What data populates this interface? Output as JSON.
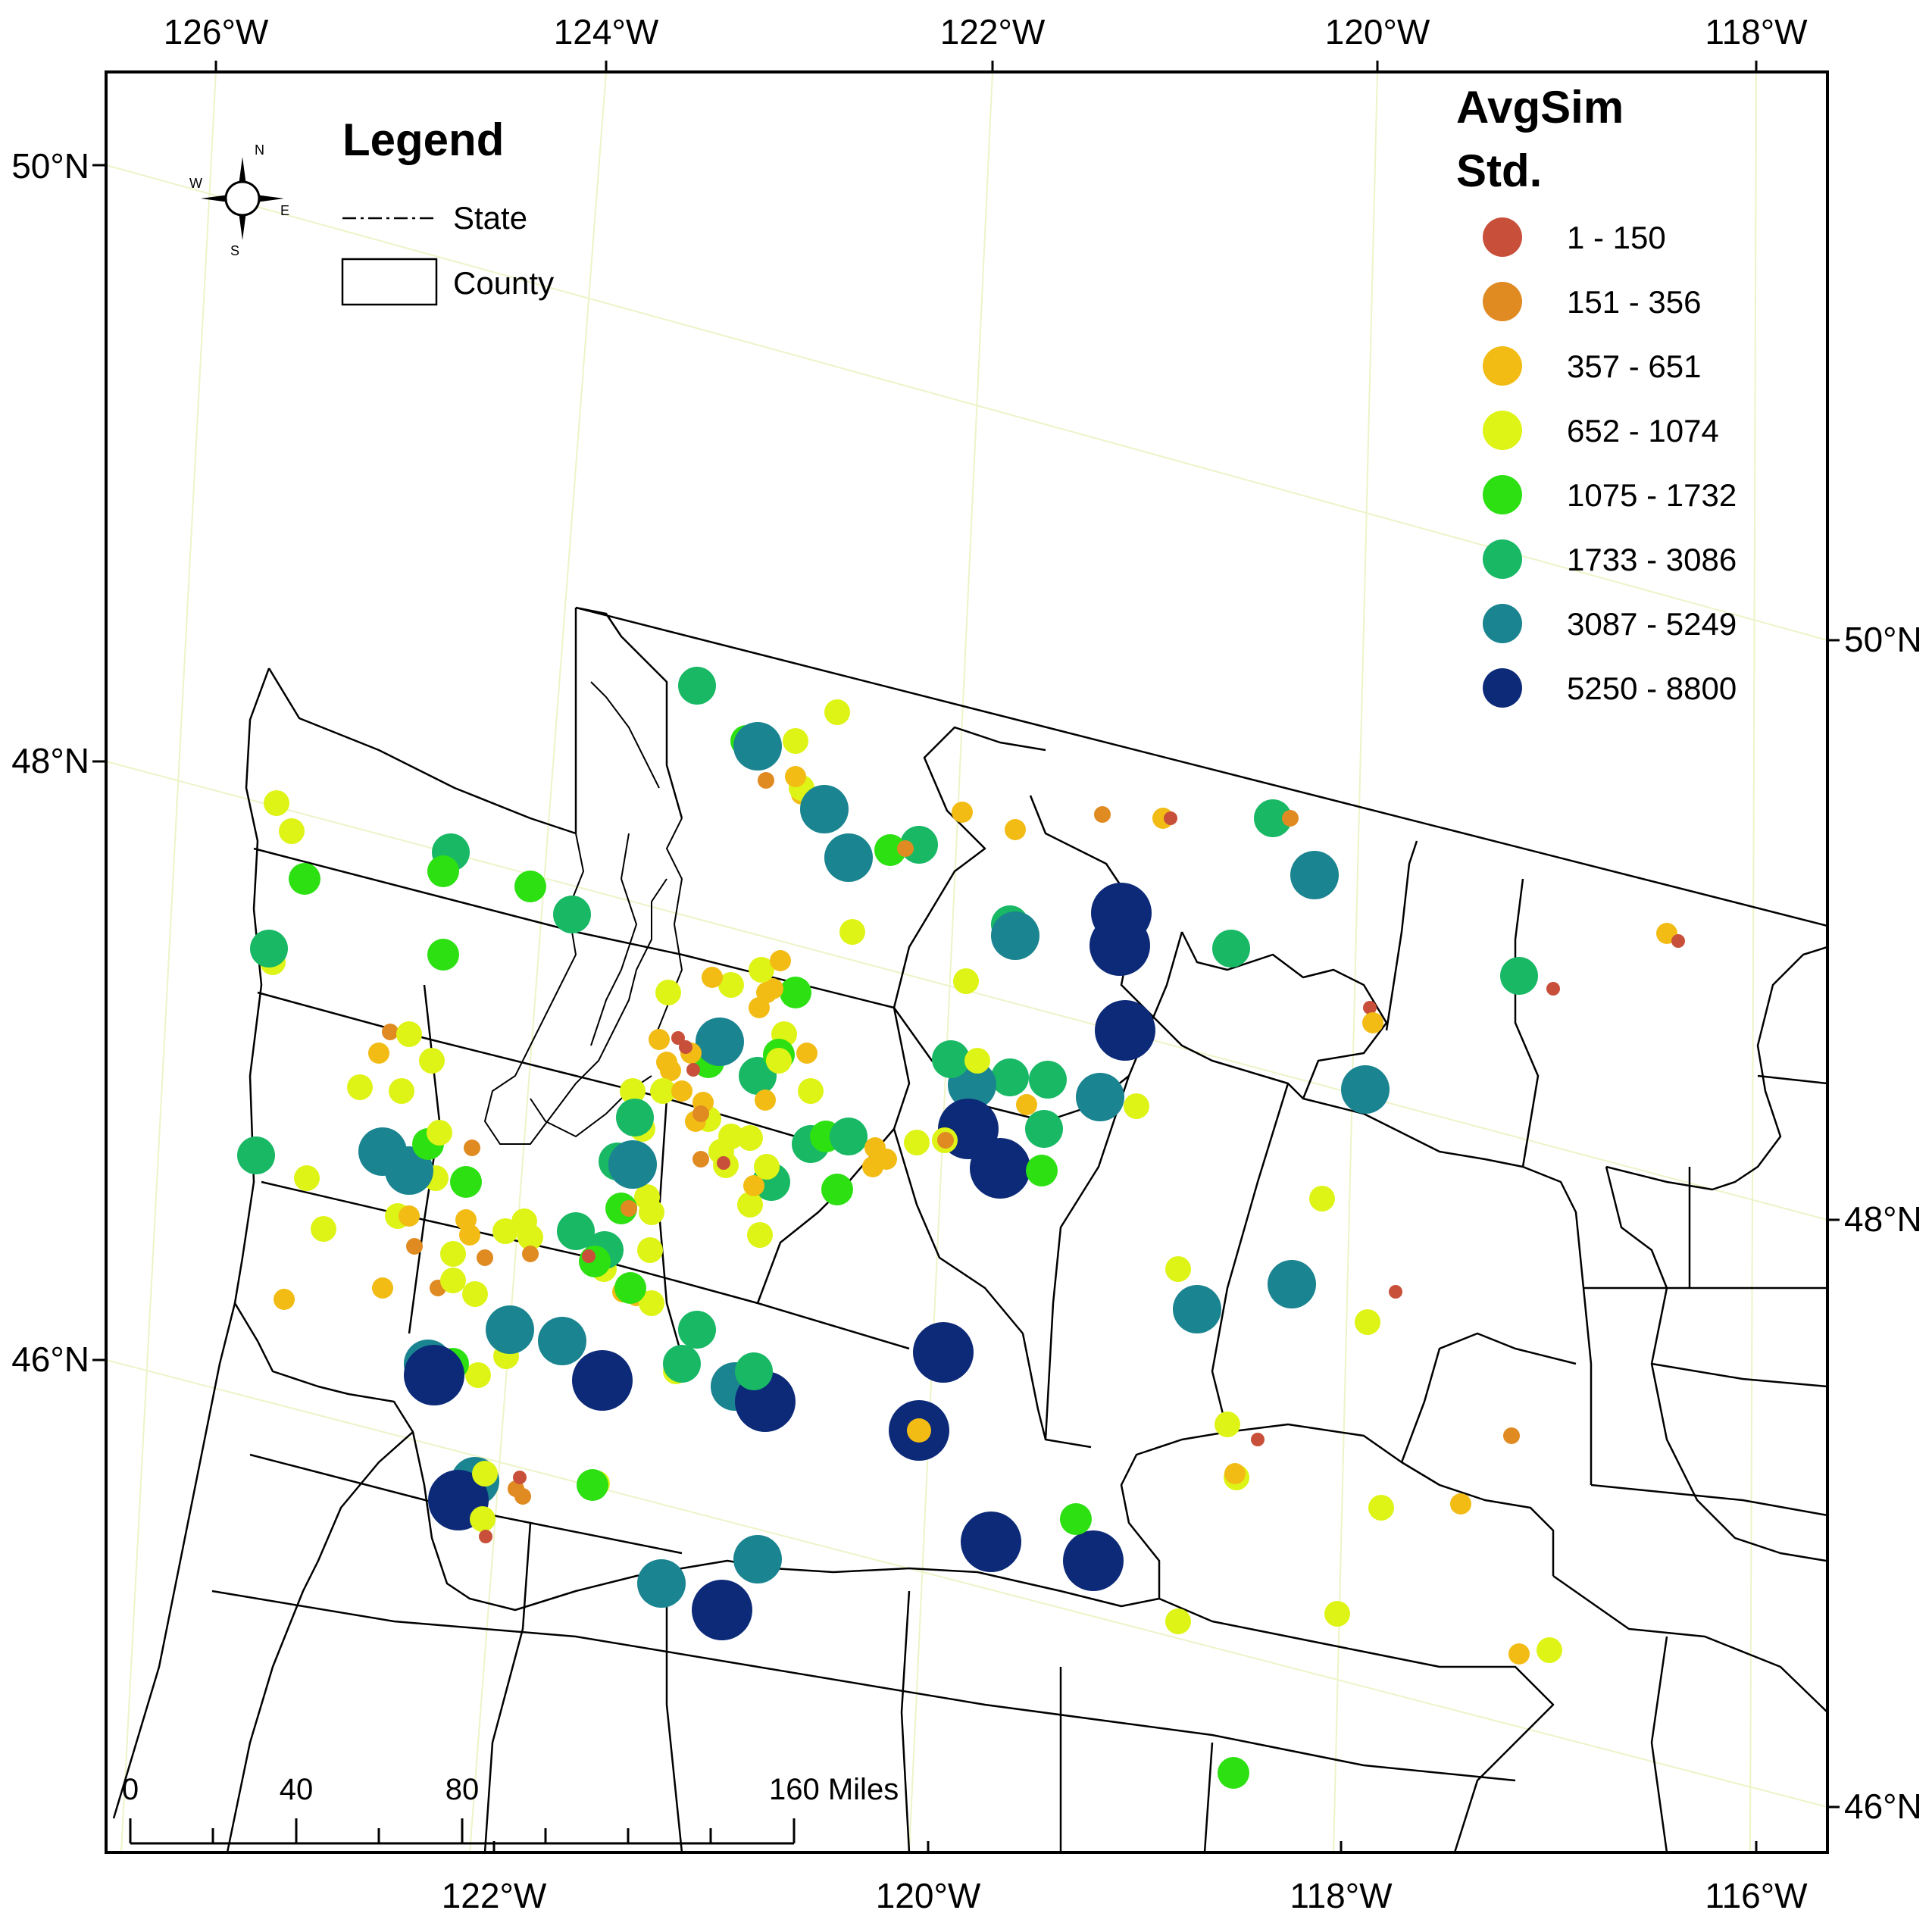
{
  "legend": {
    "title": "Legend",
    "state_label": "State",
    "county_label": "County"
  },
  "compass": {
    "n": "N",
    "s": "S",
    "e": "E",
    "w": "W"
  },
  "avgsim": {
    "title": "AvgSim",
    "subtitle": "Std.",
    "classes": [
      {
        "label": "1 - 150",
        "color": "#c8503a"
      },
      {
        "label": "151 - 356",
        "color": "#e08a22"
      },
      {
        "label": "357 - 651",
        "color": "#f2bc14"
      },
      {
        "label": "652 - 1074",
        "color": "#def416"
      },
      {
        "label": "1075 - 1732",
        "color": "#2ce012"
      },
      {
        "label": "1733 - 3086",
        "color": "#18b865"
      },
      {
        "label": "3087 - 5249",
        "color": "#1a8490"
      },
      {
        "label": "5250 - 8800",
        "color": "#0c2a78"
      }
    ]
  },
  "graticule_labels": {
    "top": [
      "126°W",
      "124°W",
      "122°W",
      "120°W",
      "118°W"
    ],
    "bottom": [
      "122°W",
      "120°W",
      "118°W",
      "116°W"
    ],
    "left": [
      "50°N",
      "48°N",
      "46°N"
    ],
    "right": [
      "50°N",
      "48°N",
      "46°N"
    ]
  },
  "scale_bar": {
    "labels": [
      "0",
      "40",
      "80",
      "160 Miles"
    ]
  }
}
